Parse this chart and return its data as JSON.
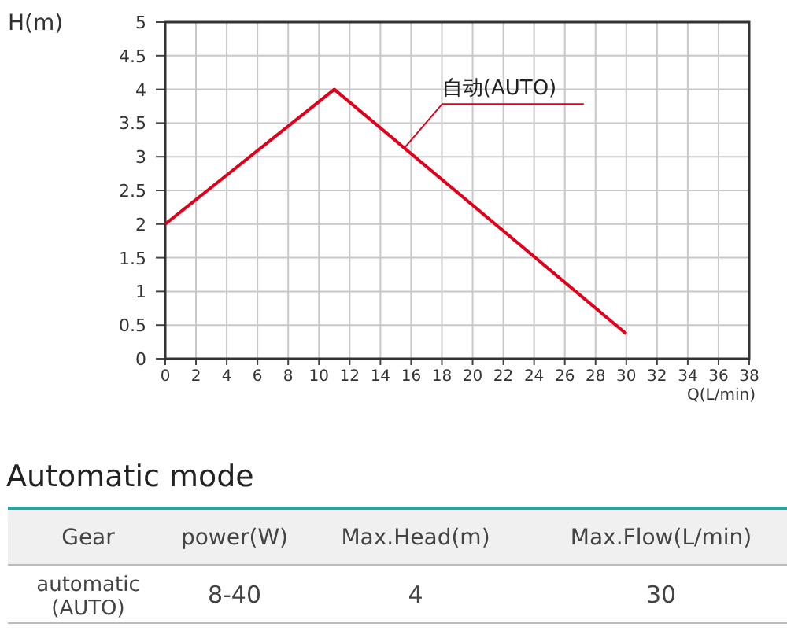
{
  "chart_data": {
    "type": "line",
    "ylabel": "H(m)",
    "xlabel": "Q(L/min)",
    "xlim": [
      0,
      38
    ],
    "ylim": [
      0,
      5
    ],
    "xticks": [
      0,
      2,
      4,
      6,
      8,
      10,
      12,
      14,
      16,
      18,
      20,
      22,
      24,
      26,
      28,
      30,
      32,
      34,
      36,
      38
    ],
    "yticks": [
      0,
      0.5,
      1,
      1.5,
      2,
      2.5,
      3,
      3.5,
      4,
      4.5,
      5
    ],
    "grid": true,
    "marker": "none",
    "line_style": "solid",
    "series": [
      {
        "name": "自动(AUTO)",
        "color": "#e0001b",
        "x": [
          0,
          11,
          30
        ],
        "values": [
          2,
          4,
          0.37
        ]
      }
    ],
    "annotations": [
      "Automatic mode",
      "Gear",
      "power(W)",
      "Max.Head(m)",
      "Max.Flow(L/min)",
      "automatic\n(AUTO)",
      "8-40",
      "4",
      "30"
    ]
  }
}
